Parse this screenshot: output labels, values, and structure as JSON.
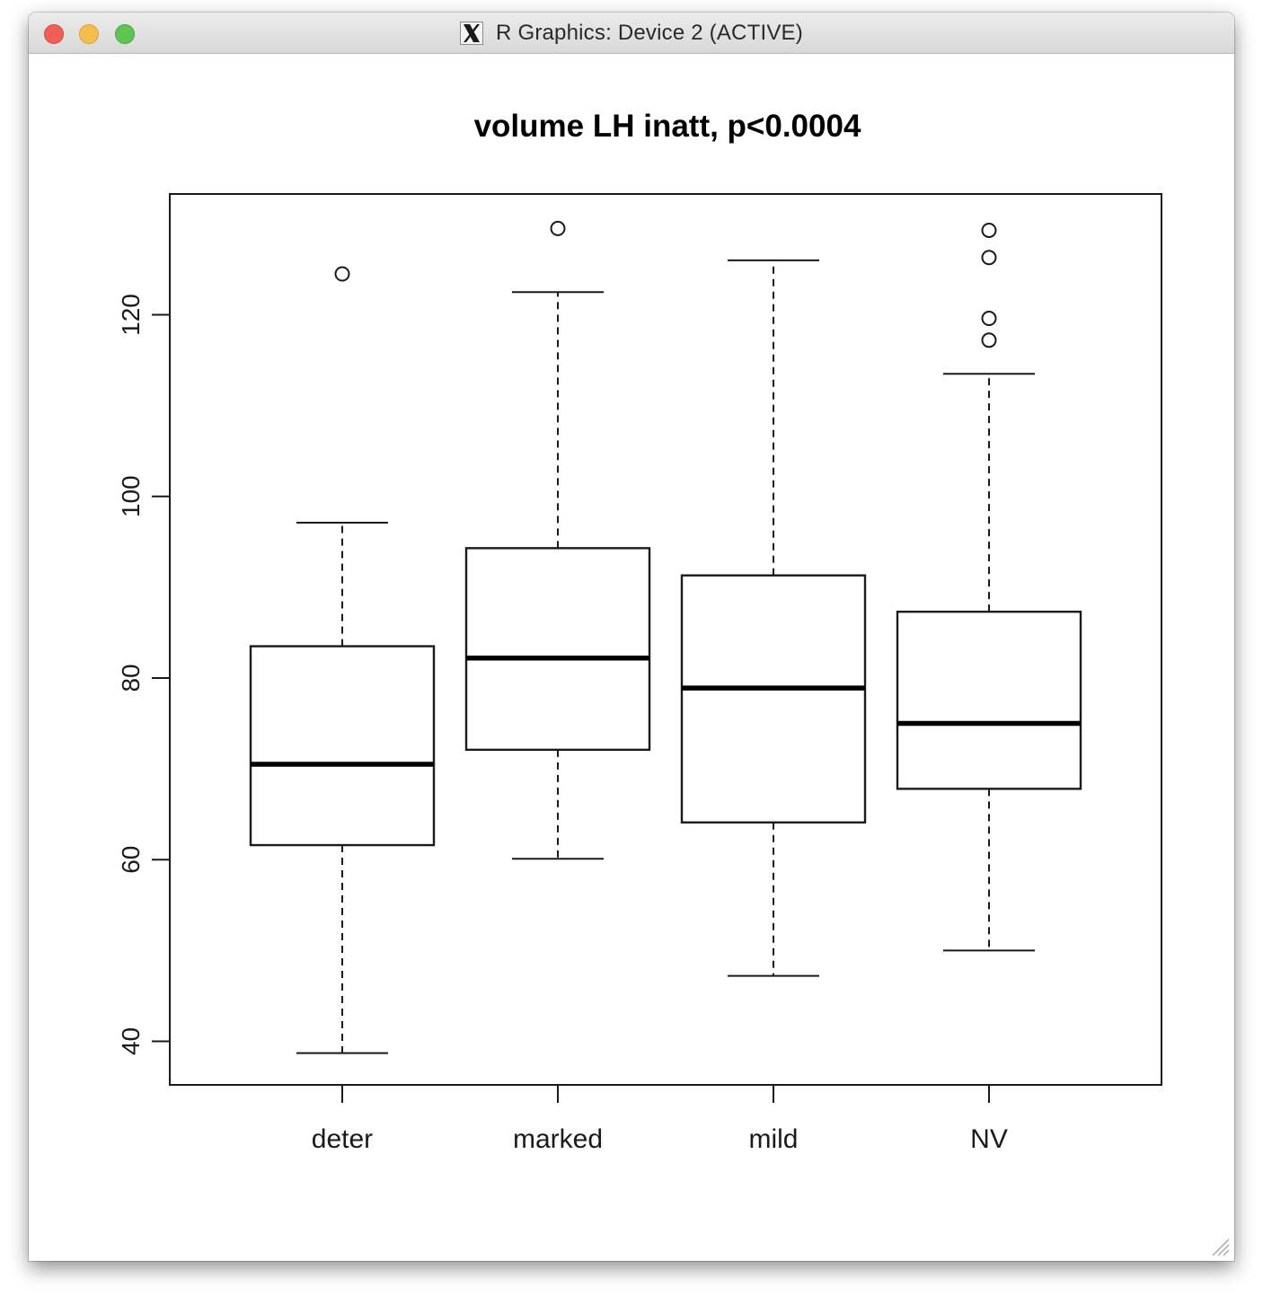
{
  "window": {
    "title": "R Graphics: Device 2 (ACTIVE)",
    "app_icon": "x11-icon",
    "controls": [
      "close-button",
      "minimize-button",
      "zoom-button"
    ]
  },
  "chart_data": {
    "type": "boxplot",
    "title": "volume LH inatt, p<0.0004",
    "xlabel": "",
    "ylabel": "",
    "categories": [
      "deter",
      "marked",
      "mild",
      "NV"
    ],
    "ylim": [
      35.2,
      133.3
    ],
    "yticks": [
      40,
      60,
      80,
      100,
      120
    ],
    "boxes": [
      {
        "category": "deter",
        "whisker_low": 38.7,
        "q1": 61.6,
        "median": 70.5,
        "q3": 83.5,
        "whisker_high": 97.1,
        "outliers": [
          124.5
        ]
      },
      {
        "category": "marked",
        "whisker_low": 60.1,
        "q1": 72.1,
        "median": 82.2,
        "q3": 94.3,
        "whisker_high": 122.5,
        "outliers": [
          129.5
        ]
      },
      {
        "category": "mild",
        "whisker_low": 47.2,
        "q1": 64.1,
        "median": 78.9,
        "q3": 91.3,
        "whisker_high": 126.0,
        "outliers": []
      },
      {
        "category": "NV",
        "whisker_low": 50.0,
        "q1": 67.8,
        "median": 75.0,
        "q3": 87.3,
        "whisker_high": 113.5,
        "outliers": [
          117.2,
          119.6,
          126.3,
          129.3
        ]
      }
    ],
    "grid": false,
    "legend": "none"
  }
}
